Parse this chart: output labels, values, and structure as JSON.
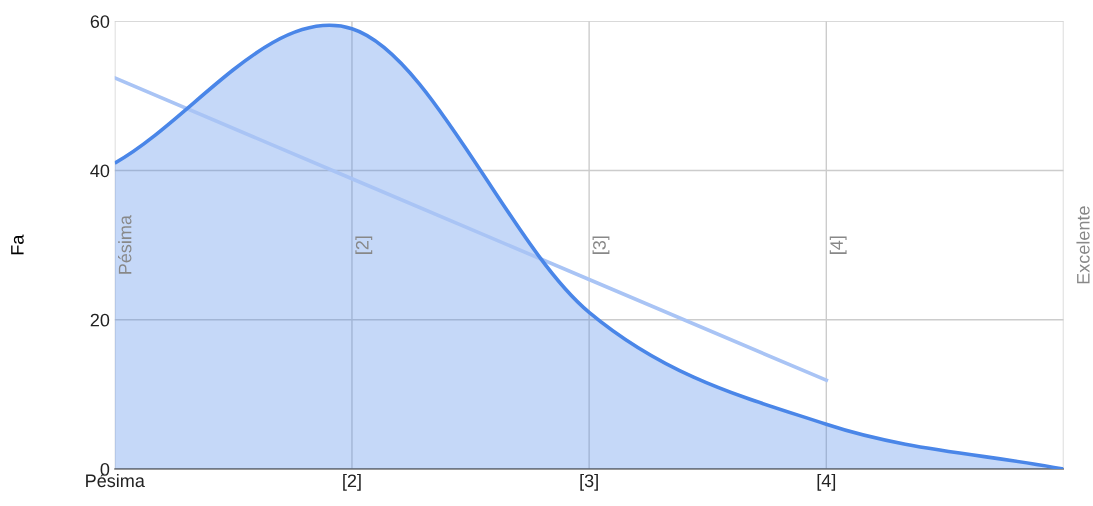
{
  "chart_data": {
    "type": "area",
    "ylabel": "Fa",
    "categories": [
      "Pésima",
      "[2]",
      "[3]",
      "[4]",
      null
    ],
    "series": [
      {
        "color": "#4a86e8",
        "values": [
          41,
          59,
          21,
          6,
          0
        ]
      },
      {
        "type": "line",
        "color": "#a9c4f5",
        "values": [
          52.4,
          38.9,
          25.4,
          11.9,
          null
        ]
      }
    ],
    "ylim": [
      0,
      60
    ],
    "yticks": [
      0,
      20,
      40,
      60
    ],
    "grid": true,
    "annotations": [
      "Pésima",
      "[2]",
      "[3]",
      "[4]",
      "Excelente"
    ]
  }
}
